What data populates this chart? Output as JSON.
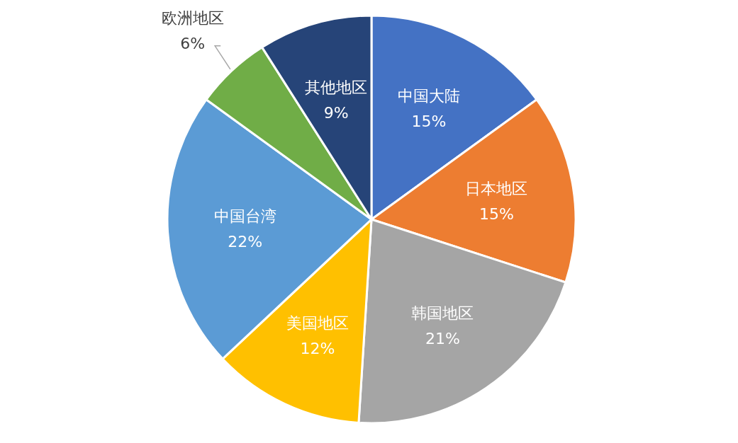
{
  "chart_data": {
    "type": "pie",
    "categories": [
      "中国大陆",
      "日本地区",
      "韩国地区",
      "美国地区",
      "中国台湾",
      "欧洲地区",
      "其他地区"
    ],
    "values": [
      15,
      15,
      21,
      12,
      22,
      6,
      9
    ],
    "value_labels": [
      "15%",
      "15%",
      "21%",
      "12%",
      "22%",
      "6%",
      "9%"
    ],
    "colors": [
      "#4472c4",
      "#ed7d31",
      "#a5a5a5",
      "#ffc000",
      "#5b9bd5",
      "#70ad47",
      "#264478"
    ],
    "legend": false
  }
}
